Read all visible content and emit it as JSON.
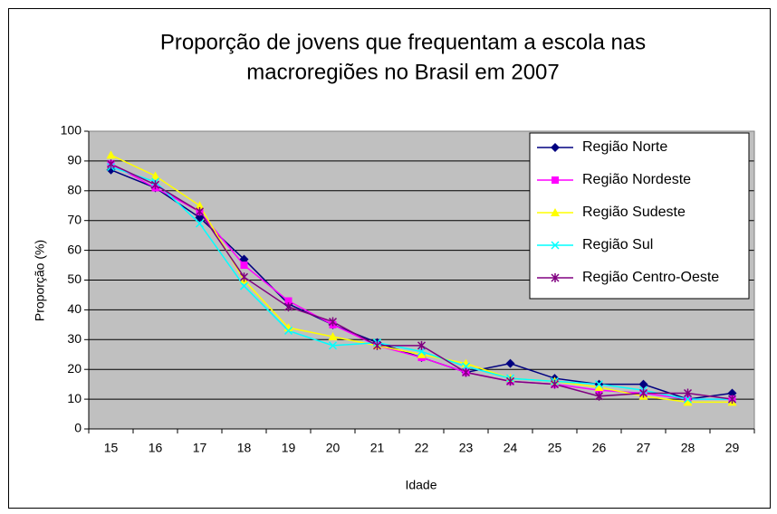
{
  "chart_data": {
    "type": "line",
    "title": [
      "Proporção de jovens que frequentam a escola nas",
      "macroregiões no Brasil em 2007"
    ],
    "x_label": "Idade",
    "y_label": "Proporção (%)",
    "categories": [
      "15",
      "16",
      "17",
      "18",
      "19",
      "20",
      "21",
      "22",
      "23",
      "24",
      "25",
      "26",
      "27",
      "28",
      "29"
    ],
    "series": [
      {
        "name": "Região Norte",
        "color": "#000080",
        "marker": "diamond",
        "values": [
          87,
          81,
          71,
          57,
          42,
          35,
          29,
          24,
          19,
          22,
          17,
          15,
          15,
          10,
          12
        ]
      },
      {
        "name": "Região Nordeste",
        "color": "#ff00ff",
        "marker": "square",
        "values": [
          89,
          81,
          73,
          55,
          43,
          35,
          28,
          24,
          19,
          16,
          15,
          13,
          12,
          10,
          10
        ]
      },
      {
        "name": "Região Sudeste",
        "color": "#ffff00",
        "marker": "triangle",
        "values": [
          92,
          85,
          75,
          50,
          34,
          31,
          28,
          25,
          22,
          17,
          16,
          14,
          11,
          9,
          9
        ]
      },
      {
        "name": "Região Sul",
        "color": "#00ffff",
        "marker": "x",
        "values": [
          88,
          83,
          69,
          48,
          33,
          28,
          29,
          26,
          21,
          17,
          16,
          15,
          13,
          10,
          10
        ]
      },
      {
        "name": "Região Centro-Oeste",
        "color": "#800080",
        "marker": "star",
        "values": [
          89,
          82,
          73,
          51,
          41,
          36,
          28,
          28,
          19,
          16,
          15,
          11,
          12,
          12,
          10
        ]
      }
    ],
    "ylim": [
      0,
      100
    ],
    "yticks": [
      0,
      10,
      20,
      30,
      40,
      50,
      60,
      70,
      80,
      90,
      100
    ],
    "grid": true,
    "legend": "upper-right",
    "plot_background": "#c0c0c0"
  }
}
